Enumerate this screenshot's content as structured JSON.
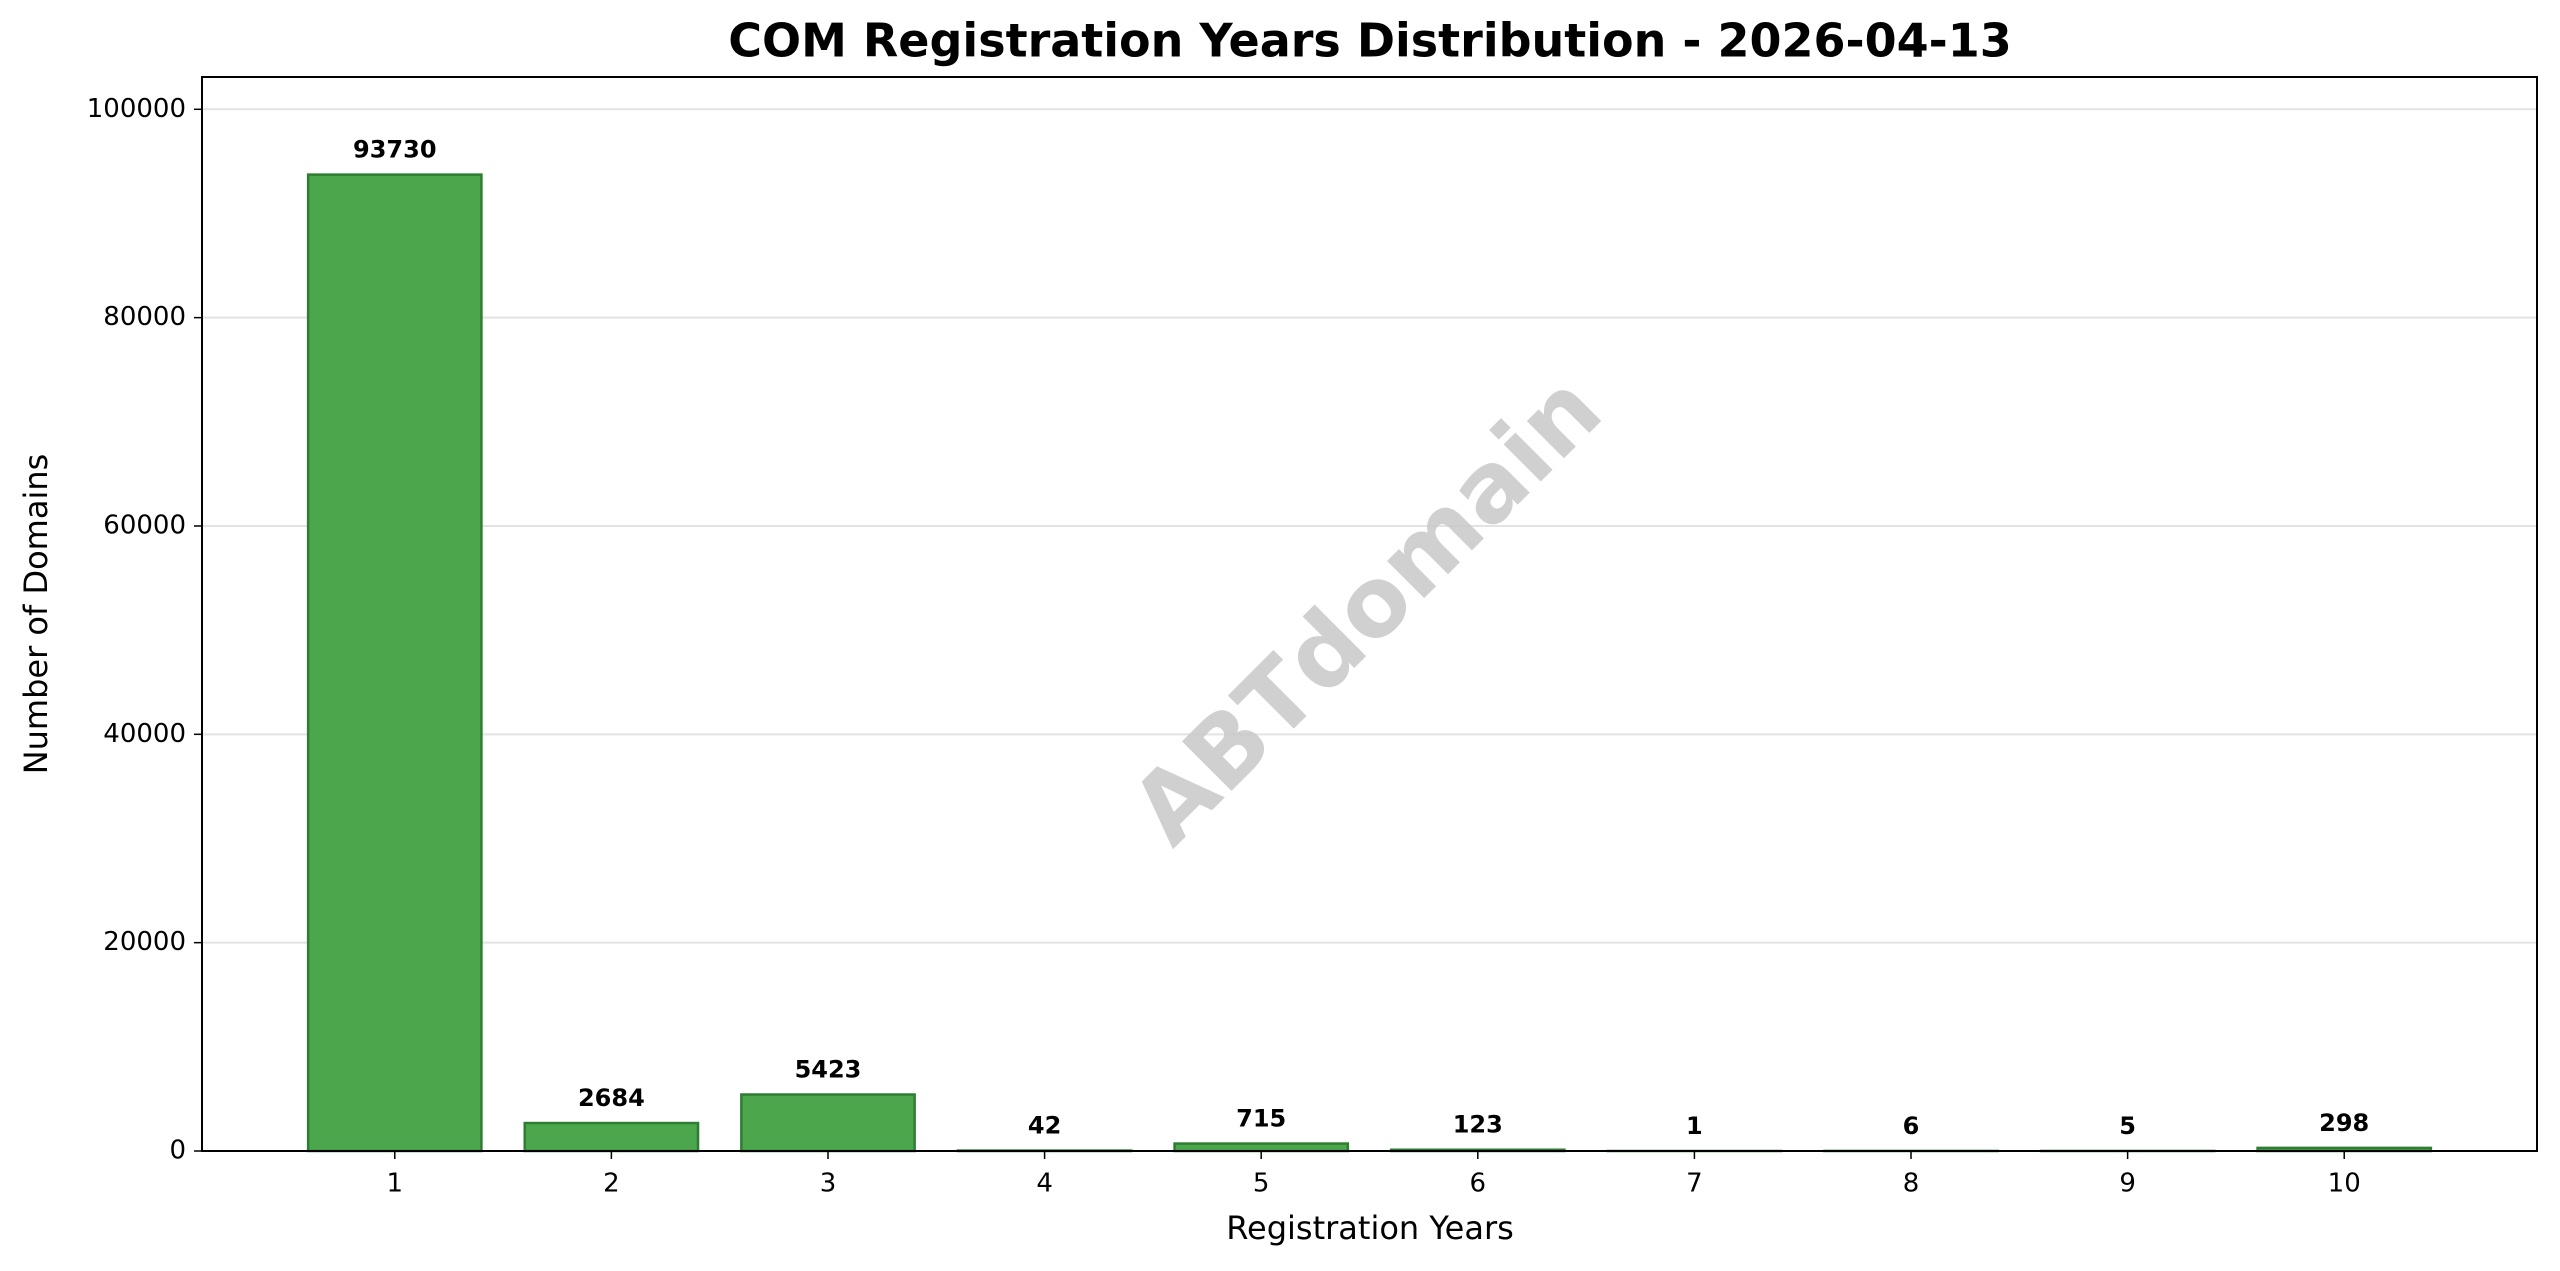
{
  "chart_data": {
    "type": "bar",
    "title": "COM Registration Years Distribution - 2026-04-13",
    "x_label": "Registration Years",
    "y_label": "Number of Domains",
    "watermark": "ABTdomain",
    "categories": [
      "1",
      "2",
      "3",
      "4",
      "5",
      "6",
      "7",
      "8",
      "9",
      "10"
    ],
    "values": [
      93730,
      2684,
      5423,
      42,
      715,
      123,
      1,
      6,
      5,
      298
    ],
    "color": "#4ca64c",
    "edge_color": "#2e7d32",
    "ylim": [
      0,
      103100
    ],
    "yticks": [
      0,
      20000,
      40000,
      60000,
      80000,
      100000
    ],
    "grid": true
  }
}
